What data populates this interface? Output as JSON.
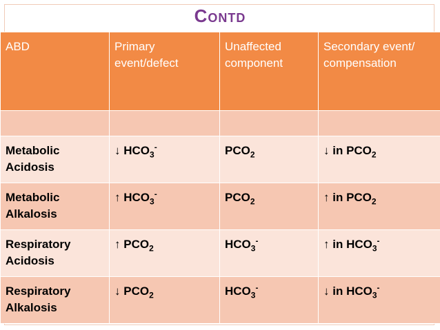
{
  "title": "Contd",
  "headers": [
    "ABD",
    "Primary event/defect",
    "Unaffected component",
    "Secondary event/ compensation"
  ],
  "rows": [
    {
      "disorder": [
        "Metabolic",
        "Acidosis"
      ],
      "primary": {
        "arrow": "↓",
        "base": "HCO",
        "sub": "3",
        "sup": "-"
      },
      "unaffected": {
        "base": "PCO",
        "sub": "2",
        "sup": ""
      },
      "secondary": {
        "arrow": "↓",
        "text": "in PCO",
        "sub": "2",
        "sup": ""
      }
    },
    {
      "disorder": [
        "Metabolic",
        "Alkalosis"
      ],
      "primary": {
        "arrow": "↑",
        "base": "HCO",
        "sub": "3",
        "sup": "-"
      },
      "unaffected": {
        "base": "PCO",
        "sub": "2",
        "sup": ""
      },
      "secondary": {
        "arrow": "↑",
        "text": "in PCO",
        "sub": "2",
        "sup": ""
      }
    },
    {
      "disorder": [
        "Respiratory",
        "Acidosis"
      ],
      "primary": {
        "arrow": "↑",
        "base": "PCO",
        "sub": "2",
        "sup": ""
      },
      "unaffected": {
        "base": "HCO",
        "sub": "3",
        "sup": "-"
      },
      "secondary": {
        "arrow": "↑",
        "text": "in HCO",
        "sub": "3",
        "sup": "-"
      }
    },
    {
      "disorder": [
        "Respiratory",
        "Alkalosis"
      ],
      "primary": {
        "arrow": "↓",
        "base": "PCO",
        "sub": "2",
        "sup": ""
      },
      "unaffected": {
        "base": "HCO",
        "sub": "3",
        "sup": "-"
      },
      "secondary": {
        "arrow": "↓",
        "text": "in HCO",
        "sub": "3",
        "sup": "-"
      }
    }
  ]
}
